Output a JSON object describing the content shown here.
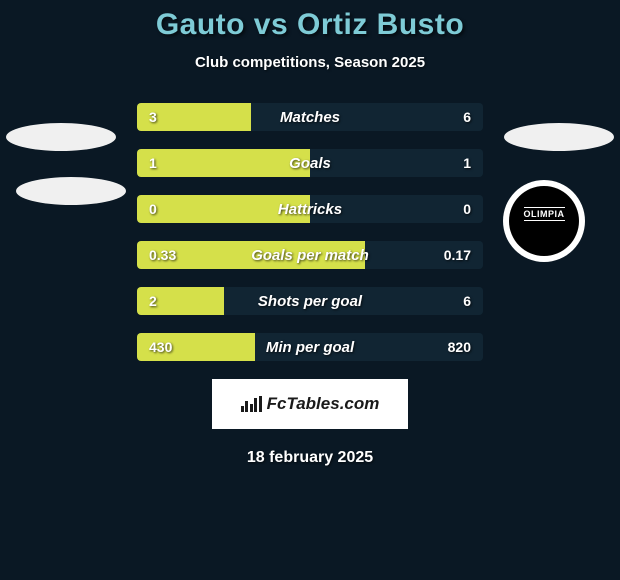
{
  "title": "Gauto vs Ortiz Busto",
  "subtitle": "Club competitions, Season 2025",
  "stats": [
    {
      "label": "Matches",
      "left_val": "3",
      "right_val": "6",
      "left_pct": 33
    },
    {
      "label": "Goals",
      "left_val": "1",
      "right_val": "1",
      "left_pct": 50
    },
    {
      "label": "Hattricks",
      "left_val": "0",
      "right_val": "0",
      "left_pct": 50
    },
    {
      "label": "Goals per match",
      "left_val": "0.33",
      "right_val": "0.17",
      "left_pct": 66
    },
    {
      "label": "Shots per goal",
      "left_val": "2",
      "right_val": "6",
      "left_pct": 25
    },
    {
      "label": "Min per goal",
      "left_val": "430",
      "right_val": "820",
      "left_pct": 34
    }
  ],
  "colors": {
    "bar_left": "#d5e04a",
    "bar_right": "#112533",
    "bg": "#0a1824",
    "title": "#7ecbd6",
    "text": "#ffffff"
  },
  "club_badge_text": "OLIMPIA",
  "footer_brand": "FcTables.com",
  "footer_date": "18 february 2025"
}
